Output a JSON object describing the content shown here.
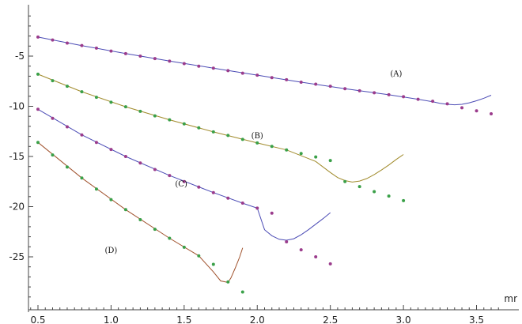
{
  "chart_data": {
    "type": "scatter",
    "title": "",
    "xlabel": "mr",
    "ylabel": "",
    "xlim": [
      0.42,
      3.65
    ],
    "ylim": [
      -29.3,
      -0.6
    ],
    "grid": false,
    "x_ticks": [
      0.5,
      1.0,
      1.5,
      2.0,
      2.5,
      3.0,
      3.5
    ],
    "x_tick_labels": [
      "0.5",
      "1.0",
      "1.5",
      "2.0",
      "2.5",
      "3.0",
      "3.5"
    ],
    "y_ticks": [
      -5,
      -10,
      -15,
      -20,
      -25
    ],
    "y_tick_labels": [
      "-5",
      "-10",
      "-15",
      "-20",
      "-25"
    ],
    "series": [
      {
        "name": "(A)",
        "label_at": [
          2.95,
          -7.0
        ],
        "point_color": "#9b3c8c",
        "line_color": "#4b4bb5",
        "points": {
          "x": [
            0.5,
            0.6,
            0.7,
            0.8,
            0.9,
            1.0,
            1.1,
            1.2,
            1.3,
            1.4,
            1.5,
            1.6,
            1.7,
            1.8,
            1.9,
            2.0,
            2.1,
            2.2,
            2.3,
            2.4,
            2.5,
            2.6,
            2.7,
            2.8,
            2.9,
            3.0,
            3.1,
            3.2,
            3.3,
            3.4,
            3.5,
            3.6
          ],
          "y": [
            -3.1,
            -3.4,
            -3.7,
            -3.95,
            -4.2,
            -4.5,
            -4.75,
            -5.0,
            -5.25,
            -5.5,
            -5.75,
            -6.0,
            -6.2,
            -6.45,
            -6.7,
            -6.9,
            -7.15,
            -7.35,
            -7.6,
            -7.8,
            -8.0,
            -8.25,
            -8.45,
            -8.65,
            -8.85,
            -9.05,
            -9.3,
            -9.5,
            -9.75,
            -10.15,
            -10.45,
            -10.75
          ]
        },
        "curve": {
          "x": [
            0.5,
            0.8,
            1.1,
            1.4,
            1.7,
            2.0,
            2.3,
            2.6,
            2.9,
            3.1,
            3.2,
            3.25,
            3.3,
            3.35,
            3.4,
            3.45,
            3.5,
            3.55,
            3.6
          ],
          "y": [
            -3.1,
            -3.95,
            -4.75,
            -5.5,
            -6.2,
            -6.9,
            -7.6,
            -8.25,
            -8.85,
            -9.3,
            -9.55,
            -9.7,
            -9.8,
            -9.85,
            -9.8,
            -9.65,
            -9.45,
            -9.2,
            -8.9
          ]
        }
      },
      {
        "name": "(B)",
        "label_at": [
          2.0,
          -13.2
        ],
        "point_color": "#3aa048",
        "line_color": "#a08a2a",
        "points": {
          "x": [
            0.5,
            0.6,
            0.7,
            0.8,
            0.9,
            1.0,
            1.1,
            1.2,
            1.3,
            1.4,
            1.5,
            1.6,
            1.7,
            1.8,
            1.9,
            2.0,
            2.1,
            2.2,
            2.3,
            2.4,
            2.5,
            2.6,
            2.7,
            2.8,
            2.9,
            3.0
          ],
          "y": [
            -6.8,
            -7.45,
            -8.0,
            -8.55,
            -9.1,
            -9.6,
            -10.05,
            -10.5,
            -10.95,
            -11.35,
            -11.75,
            -12.15,
            -12.55,
            -12.9,
            -13.3,
            -13.65,
            -14.0,
            -14.35,
            -14.7,
            -15.05,
            -15.4,
            -17.5,
            -18.0,
            -18.5,
            -18.95,
            -19.4
          ]
        },
        "curve": {
          "x": [
            0.5,
            0.8,
            1.1,
            1.4,
            1.7,
            2.0,
            2.2,
            2.4,
            2.5,
            2.55,
            2.6,
            2.65,
            2.7,
            2.75,
            2.8,
            2.85,
            2.9,
            2.95,
            3.0
          ],
          "y": [
            -6.8,
            -8.55,
            -10.05,
            -11.35,
            -12.55,
            -13.65,
            -14.35,
            -15.5,
            -16.6,
            -17.1,
            -17.4,
            -17.55,
            -17.45,
            -17.2,
            -16.8,
            -16.35,
            -15.85,
            -15.3,
            -14.8
          ]
        }
      },
      {
        "name": "(C)",
        "label_at": [
          1.48,
          -18.0
        ],
        "point_color": "#9b3c8c",
        "line_color": "#4b4bb5",
        "points": {
          "x": [
            0.5,
            0.6,
            0.7,
            0.8,
            0.9,
            1.0,
            1.1,
            1.2,
            1.3,
            1.4,
            1.5,
            1.6,
            1.7,
            1.8,
            1.9,
            2.0,
            2.1,
            2.2,
            2.3,
            2.4,
            2.5
          ],
          "y": [
            -10.3,
            -11.2,
            -12.05,
            -12.85,
            -13.6,
            -14.3,
            -15.0,
            -15.65,
            -16.3,
            -16.9,
            -17.5,
            -18.05,
            -18.6,
            -19.15,
            -19.65,
            -20.15,
            -20.65,
            -23.5,
            -24.3,
            -25.0,
            -25.7
          ]
        },
        "curve": {
          "x": [
            0.5,
            0.8,
            1.1,
            1.4,
            1.7,
            1.9,
            2.0,
            2.05,
            2.1,
            2.15,
            2.2,
            2.25,
            2.3,
            2.35,
            2.4,
            2.45,
            2.5
          ],
          "y": [
            -10.3,
            -12.85,
            -15.0,
            -16.9,
            -18.6,
            -19.65,
            -20.15,
            -22.3,
            -22.9,
            -23.25,
            -23.35,
            -23.2,
            -22.8,
            -22.3,
            -21.75,
            -21.2,
            -20.6
          ]
        }
      },
      {
        "name": "(D)",
        "label_at": [
          1.0,
          -24.6
        ],
        "point_color": "#3aa048",
        "line_color": "#a0522d",
        "points": {
          "x": [
            0.5,
            0.6,
            0.7,
            0.8,
            0.9,
            1.0,
            1.1,
            1.2,
            1.3,
            1.4,
            1.5,
            1.6,
            1.7,
            1.8,
            1.9
          ],
          "y": [
            -13.6,
            -14.85,
            -16.05,
            -17.15,
            -18.25,
            -19.3,
            -20.3,
            -21.3,
            -22.25,
            -23.15,
            -24.05,
            -24.9,
            -25.75,
            -27.5,
            -28.5
          ]
        },
        "curve": {
          "x": [
            0.5,
            0.8,
            1.1,
            1.4,
            1.6,
            1.7,
            1.75,
            1.8,
            1.82,
            1.85,
            1.88,
            1.9
          ],
          "y": [
            -13.6,
            -17.15,
            -20.3,
            -23.15,
            -24.9,
            -26.5,
            -27.4,
            -27.55,
            -27.1,
            -26.1,
            -25.0,
            -24.1
          ]
        }
      }
    ]
  }
}
